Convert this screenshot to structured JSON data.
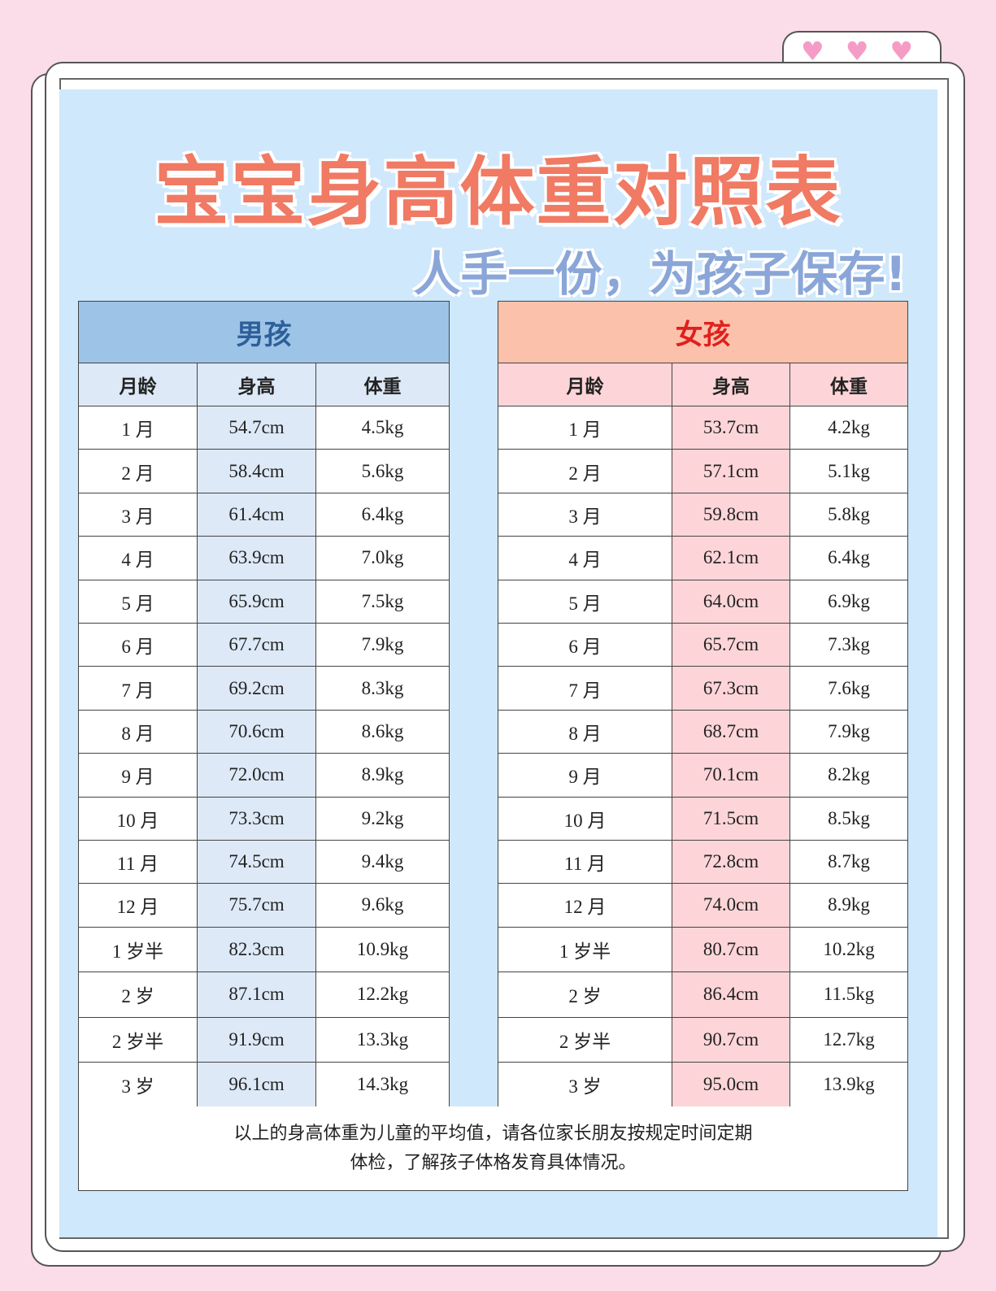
{
  "title": "宝宝身高体重对照表",
  "subtitle": "人手一份，为孩子保存!",
  "decor": {
    "icon": "heart-icon",
    "hearts": [
      "♥",
      "♥",
      "♥"
    ],
    "heart_color": "#f59cc6"
  },
  "colors": {
    "background": "#fbdde9",
    "panel": "#cfe8fb",
    "title": "#f07a63",
    "subtitle": "#8aa6d8",
    "boy_header": "#9dc3e6",
    "girl_header": "#fcc1ab"
  },
  "columns": [
    "月龄",
    "身高",
    "体重"
  ],
  "boys": {
    "label": "男孩",
    "rows": [
      [
        "1 月",
        "54.7cm",
        "4.5kg"
      ],
      [
        "2 月",
        "58.4cm",
        "5.6kg"
      ],
      [
        "3 月",
        "61.4cm",
        "6.4kg"
      ],
      [
        "4 月",
        "63.9cm",
        "7.0kg"
      ],
      [
        "5 月",
        "65.9cm",
        "7.5kg"
      ],
      [
        "6 月",
        "67.7cm",
        "7.9kg"
      ],
      [
        "7 月",
        "69.2cm",
        "8.3kg"
      ],
      [
        "8 月",
        "70.6cm",
        "8.6kg"
      ],
      [
        "9 月",
        "72.0cm",
        "8.9kg"
      ],
      [
        "10 月",
        "73.3cm",
        "9.2kg"
      ],
      [
        "11 月",
        "74.5cm",
        "9.4kg"
      ],
      [
        "12 月",
        "75.7cm",
        "9.6kg"
      ],
      [
        "1 岁半",
        "82.3cm",
        "10.9kg"
      ],
      [
        "2 岁",
        "87.1cm",
        "12.2kg"
      ],
      [
        "2 岁半",
        "91.9cm",
        "13.3kg"
      ],
      [
        "3 岁",
        "96.1cm",
        "14.3kg"
      ]
    ]
  },
  "girls": {
    "label": "女孩",
    "rows": [
      [
        "1 月",
        "53.7cm",
        "4.2kg"
      ],
      [
        "2 月",
        "57.1cm",
        "5.1kg"
      ],
      [
        "3 月",
        "59.8cm",
        "5.8kg"
      ],
      [
        "4 月",
        "62.1cm",
        "6.4kg"
      ],
      [
        "5 月",
        "64.0cm",
        "6.9kg"
      ],
      [
        "6 月",
        "65.7cm",
        "7.3kg"
      ],
      [
        "7 月",
        "67.3cm",
        "7.6kg"
      ],
      [
        "8 月",
        "68.7cm",
        "7.9kg"
      ],
      [
        "9 月",
        "70.1cm",
        "8.2kg"
      ],
      [
        "10 月",
        "71.5cm",
        "8.5kg"
      ],
      [
        "11 月",
        "72.8cm",
        "8.7kg"
      ],
      [
        "12 月",
        "74.0cm",
        "8.9kg"
      ],
      [
        "1 岁半",
        "80.7cm",
        "10.2kg"
      ],
      [
        "2 岁",
        "86.4cm",
        "11.5kg"
      ],
      [
        "2 岁半",
        "90.7cm",
        "12.7kg"
      ],
      [
        "3 岁",
        "95.0cm",
        "13.9kg"
      ]
    ]
  },
  "footer": [
    "以上的身高体重为儿童的平均值，请各位家长朋友按规定时间定期",
    "体检，了解孩子体格发育具体情况。"
  ]
}
